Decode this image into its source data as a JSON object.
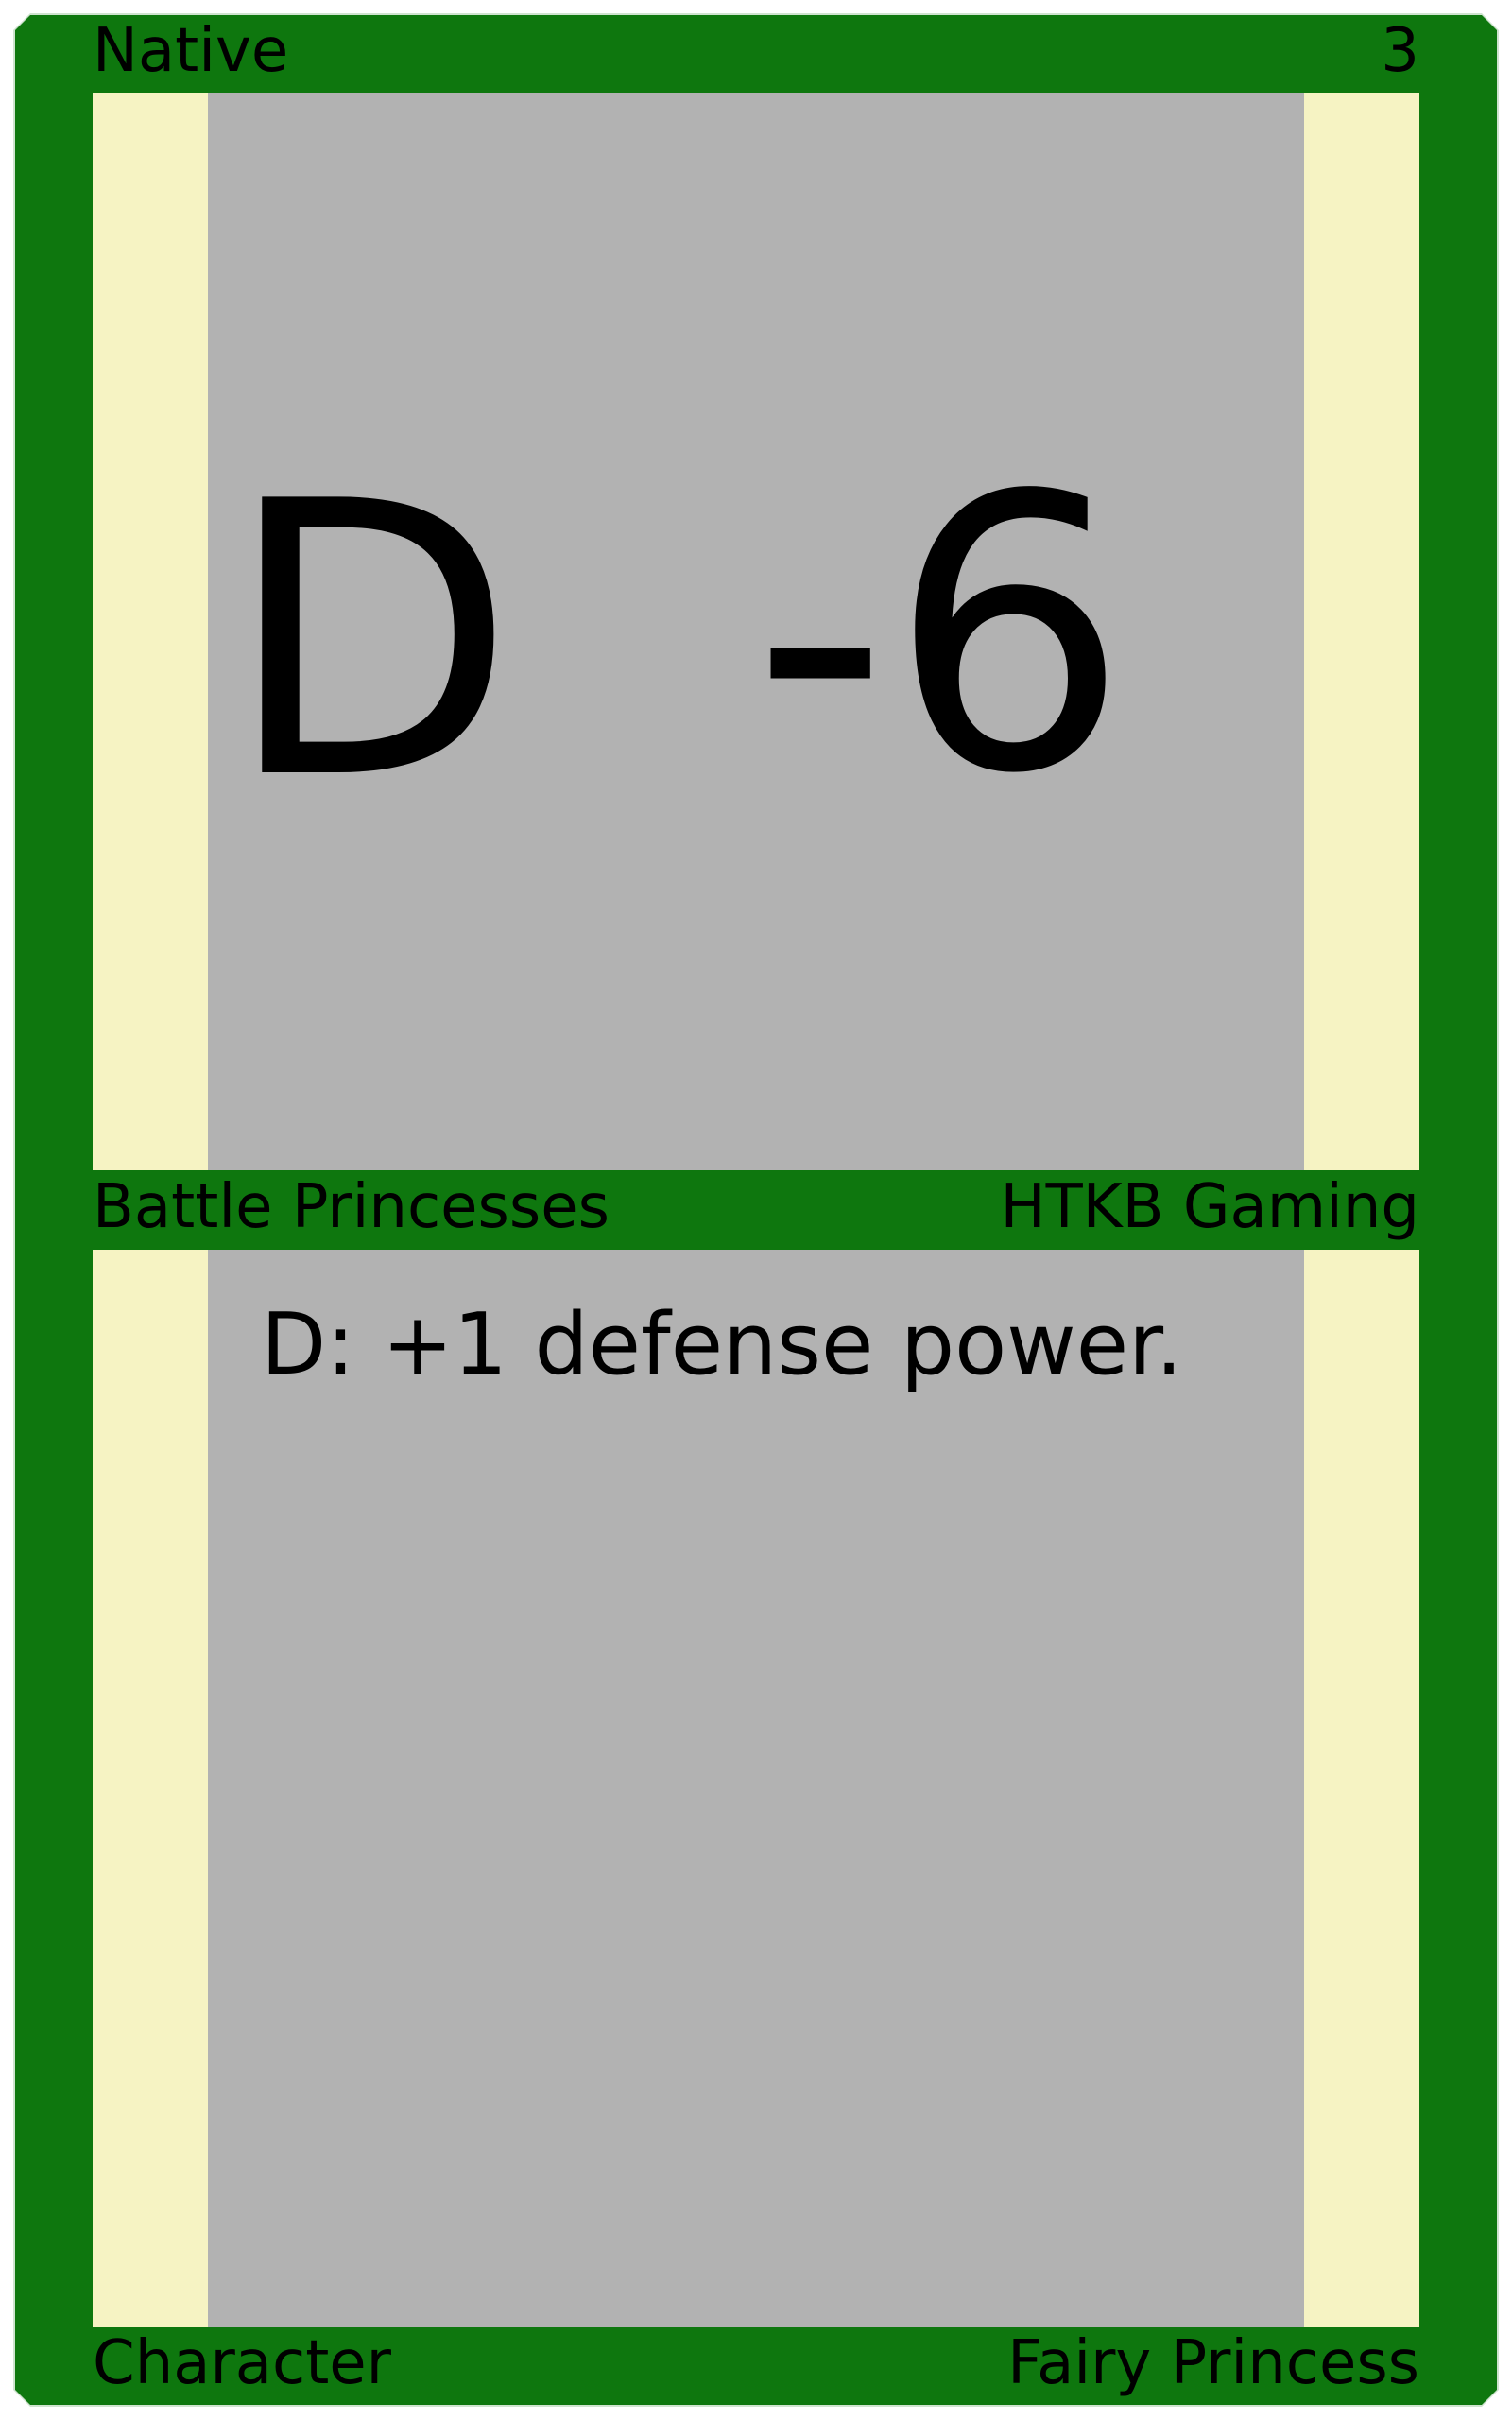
{
  "card": {
    "top_left": "Native",
    "top_right": "3",
    "big_left": "D",
    "big_right": "-6",
    "middle_left": "Battle Princesses",
    "middle_right": "HTKB Gaming",
    "ability_text": "D: +1 defense power.",
    "bottom_left": "Character",
    "bottom_right": "Fairy Princess",
    "colors": {
      "frame": "#0e770e",
      "panel_edge": "#f6f3c3",
      "panel_center": "#b2b2b2",
      "text": "#000000"
    }
  }
}
